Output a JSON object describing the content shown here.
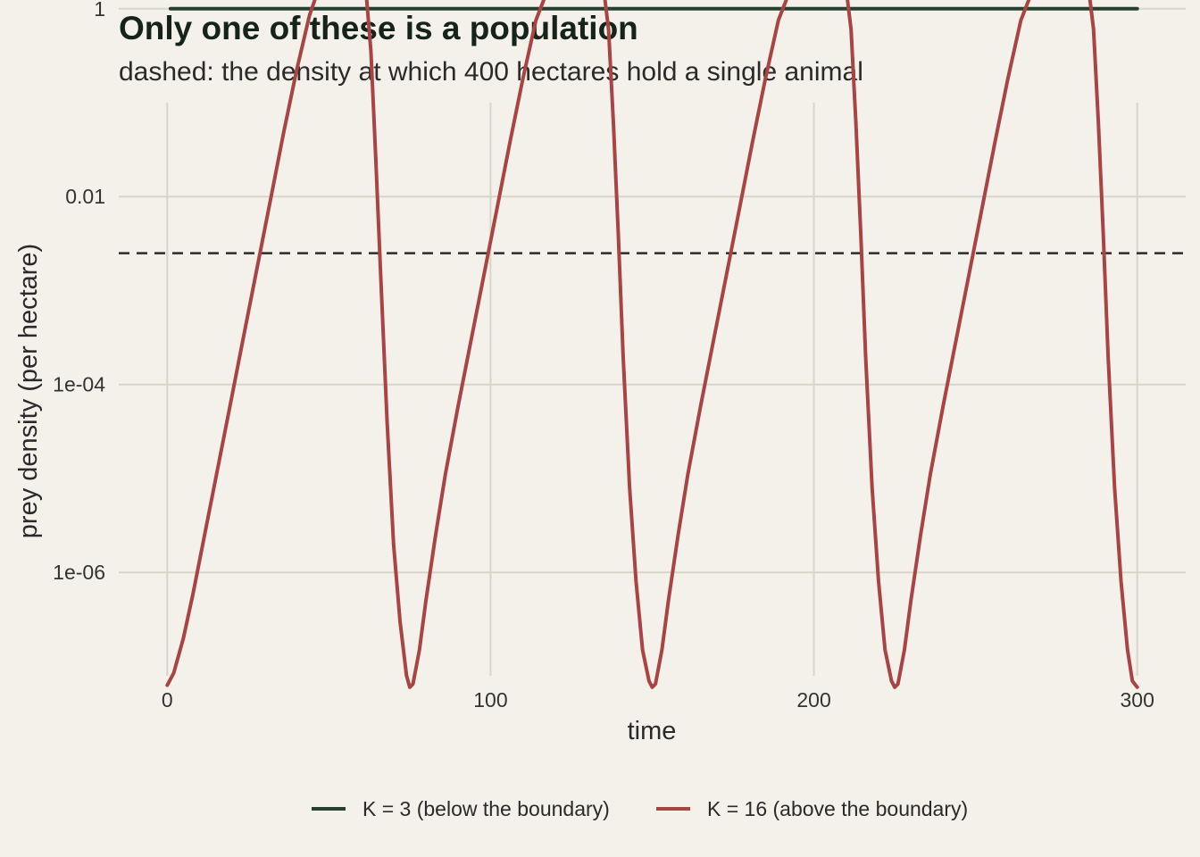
{
  "chart_data": {
    "type": "line",
    "title": "Only one of these is a population",
    "subtitle": "dashed: the density at which 400 hectares hold a single animal",
    "xlabel": "time",
    "ylabel": "prey density (per hectare)",
    "xlim": [
      -15,
      315
    ],
    "ylim_log10": [
      -7.1,
      -1.0
    ],
    "y_scale": "log10",
    "x_ticks": [
      0,
      100,
      200,
      300
    ],
    "x_tick_labels": [
      "0",
      "100",
      "200",
      "300"
    ],
    "y_ticks_log10": [
      -6,
      -4,
      -2,
      0
    ],
    "y_tick_labels": [
      "1e-06",
      "1e-04",
      "0.01",
      "1"
    ],
    "grid": true,
    "legend_position": "bottom",
    "reference_line": {
      "y": 0.0025,
      "style": "dashed",
      "color": "#2b2b2b"
    },
    "series": [
      {
        "name": "K = 3 (below the boundary)",
        "color": "#27402f",
        "x": [
          1,
          300
        ],
        "y": [
          1,
          1
        ]
      },
      {
        "name": "K = 16 (above the boundary)",
        "color": "#a84444",
        "x": [
          0,
          2,
          5,
          8,
          12,
          16,
          20,
          24,
          28,
          32,
          36,
          40,
          44,
          47,
          50,
          52,
          55,
          58,
          60,
          61.5,
          63,
          64.5,
          66,
          68,
          70,
          72,
          74,
          75,
          76,
          78,
          80,
          83,
          86,
          90,
          94,
          98,
          102,
          106,
          110,
          114,
          118,
          121,
          124,
          127,
          130,
          133,
          135,
          136.5,
          138,
          139.5,
          141,
          143,
          145,
          147,
          149,
          150,
          151,
          153,
          155,
          158,
          161,
          165,
          169,
          173,
          177,
          181,
          185,
          189,
          193,
          196,
          199,
          202,
          205,
          208,
          210,
          211.5,
          213,
          214.5,
          216,
          218,
          220,
          222,
          224,
          225,
          226,
          228,
          230,
          233,
          236,
          240,
          244,
          248,
          252,
          256,
          260,
          264,
          268,
          271,
          274,
          277,
          280,
          283,
          285,
          286.5,
          288,
          289.5,
          291,
          293,
          295,
          297,
          298.5,
          300
        ],
        "y": [
          6.3e-08,
          8.5e-08,
          2e-07,
          6e-07,
          3e-06,
          1.5e-05,
          7.5e-05,
          0.00038,
          0.0019,
          0.0095,
          0.048,
          0.22,
          0.85,
          1.7,
          2.3,
          2.5,
          2.55,
          2.5,
          2.2,
          1.5,
          0.35,
          0.025,
          0.0015,
          4e-05,
          2e-06,
          3e-07,
          8e-08,
          6e-08,
          6.5e-08,
          1.5e-07,
          5e-07,
          2.5e-06,
          1.1e-05,
          6e-05,
          0.0003,
          0.0015,
          0.0075,
          0.038,
          0.18,
          0.75,
          1.7,
          2.3,
          2.5,
          2.55,
          2.5,
          2.2,
          1.6,
          0.6,
          0.06,
          0.004,
          0.0002,
          8e-06,
          8e-07,
          1.5e-07,
          7e-08,
          6e-08,
          6.5e-08,
          1.5e-07,
          5e-07,
          2.5e-06,
          1.1e-05,
          6e-05,
          0.0003,
          0.0015,
          0.0075,
          0.038,
          0.18,
          0.75,
          1.7,
          2.3,
          2.5,
          2.55,
          2.5,
          2.2,
          1.6,
          0.6,
          0.06,
          0.004,
          0.0002,
          8e-06,
          8e-07,
          1.5e-07,
          7e-08,
          6e-08,
          6.5e-08,
          1.5e-07,
          5e-07,
          2.5e-06,
          1.1e-05,
          6e-05,
          0.0003,
          0.0015,
          0.0075,
          0.038,
          0.18,
          0.75,
          1.7,
          2.3,
          2.5,
          2.55,
          2.5,
          2.2,
          1.6,
          0.6,
          0.06,
          0.004,
          0.0002,
          8e-06,
          8e-07,
          1.5e-07,
          7e-08,
          6e-08
        ]
      }
    ]
  }
}
